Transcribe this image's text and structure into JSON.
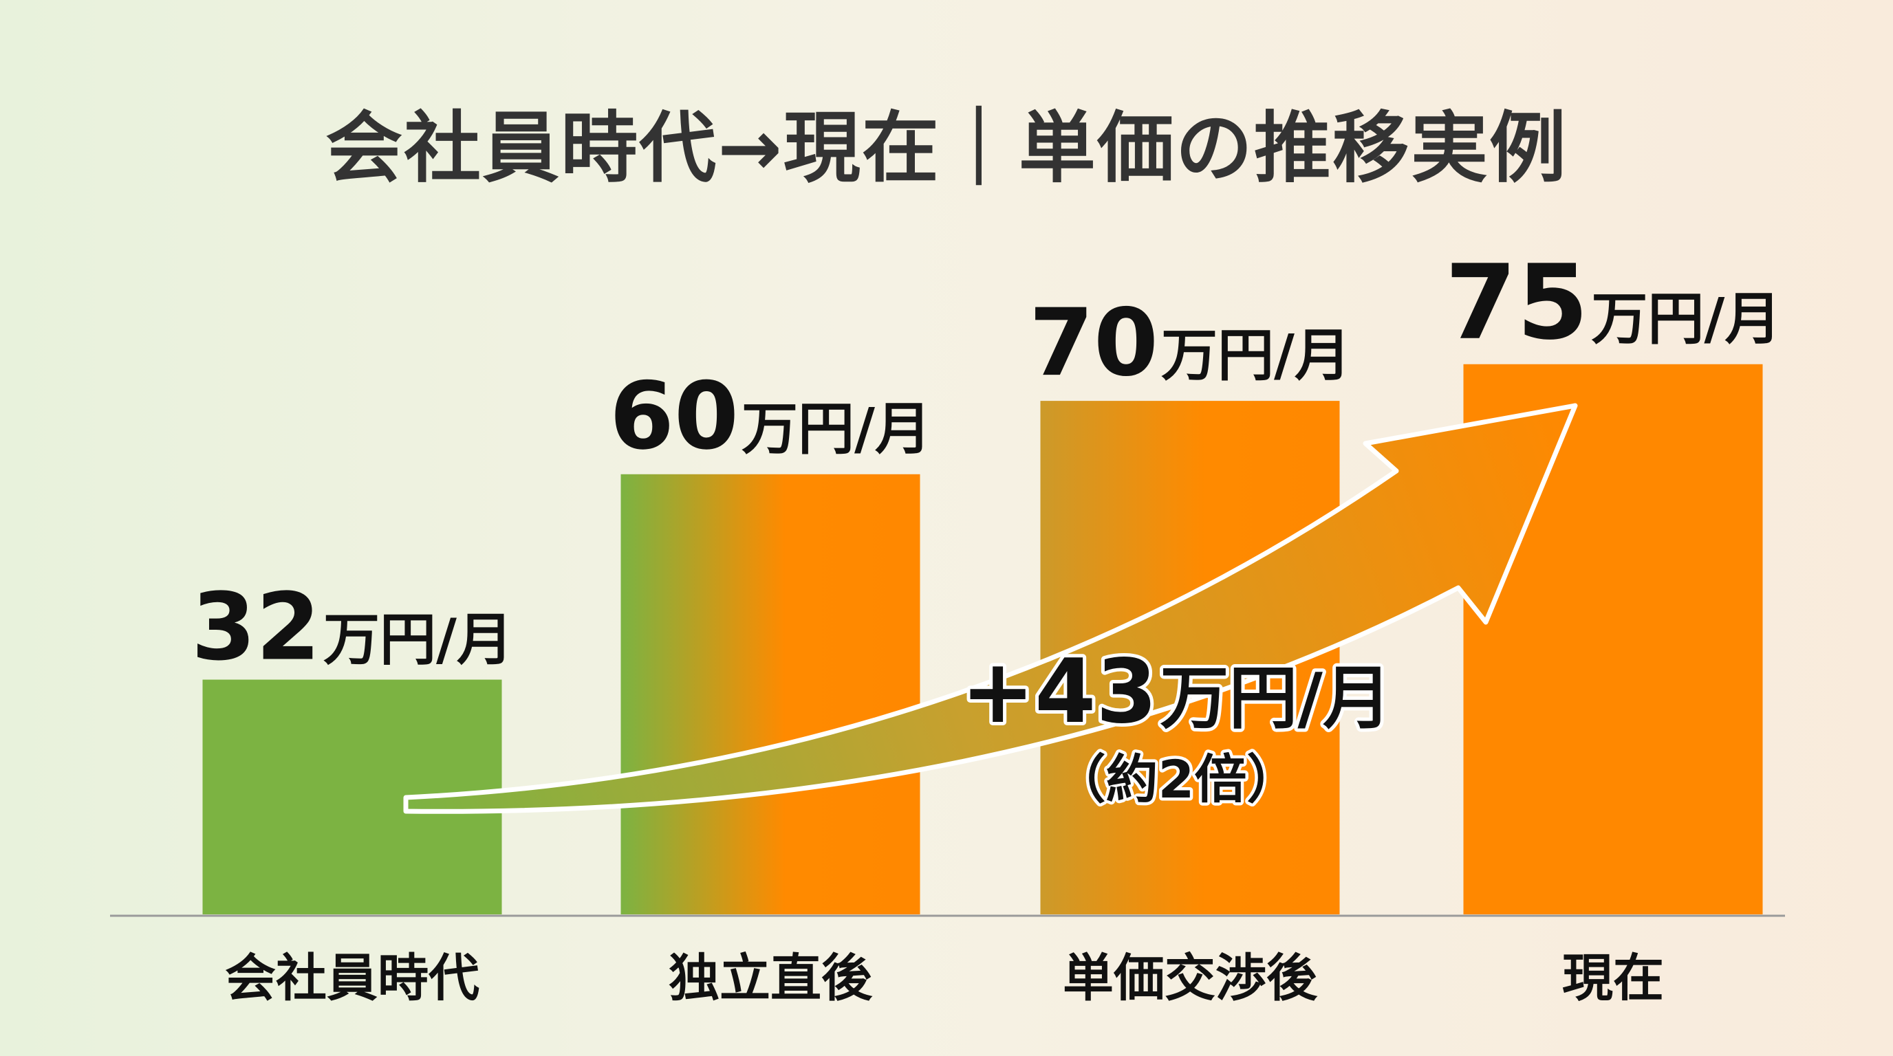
{
  "chart_data": {
    "type": "bar",
    "title": "会社員時代→現在｜単価の推移実例",
    "categories": [
      "会社員時代",
      "独立直後",
      "単価交渉後",
      "現在"
    ],
    "values": [
      32,
      60,
      70,
      75
    ],
    "value_labels": [
      {
        "number": "32",
        "unit": "万円/月"
      },
      {
        "number": "60",
        "unit": "万円/月"
      },
      {
        "number": "70",
        "unit": "万円/月"
      },
      {
        "number": "75",
        "unit": "万円/月"
      }
    ],
    "annotation": {
      "number": "+43",
      "unit": "万円/月",
      "note": "（約2倍）"
    },
    "xlabel": "",
    "ylabel": "",
    "grid": false,
    "legend": "none"
  },
  "colors": {
    "green": "#7cb342",
    "orange": "#ff8800",
    "text": "#111111",
    "title": "#333333",
    "baseline": "#9a9a9a"
  }
}
